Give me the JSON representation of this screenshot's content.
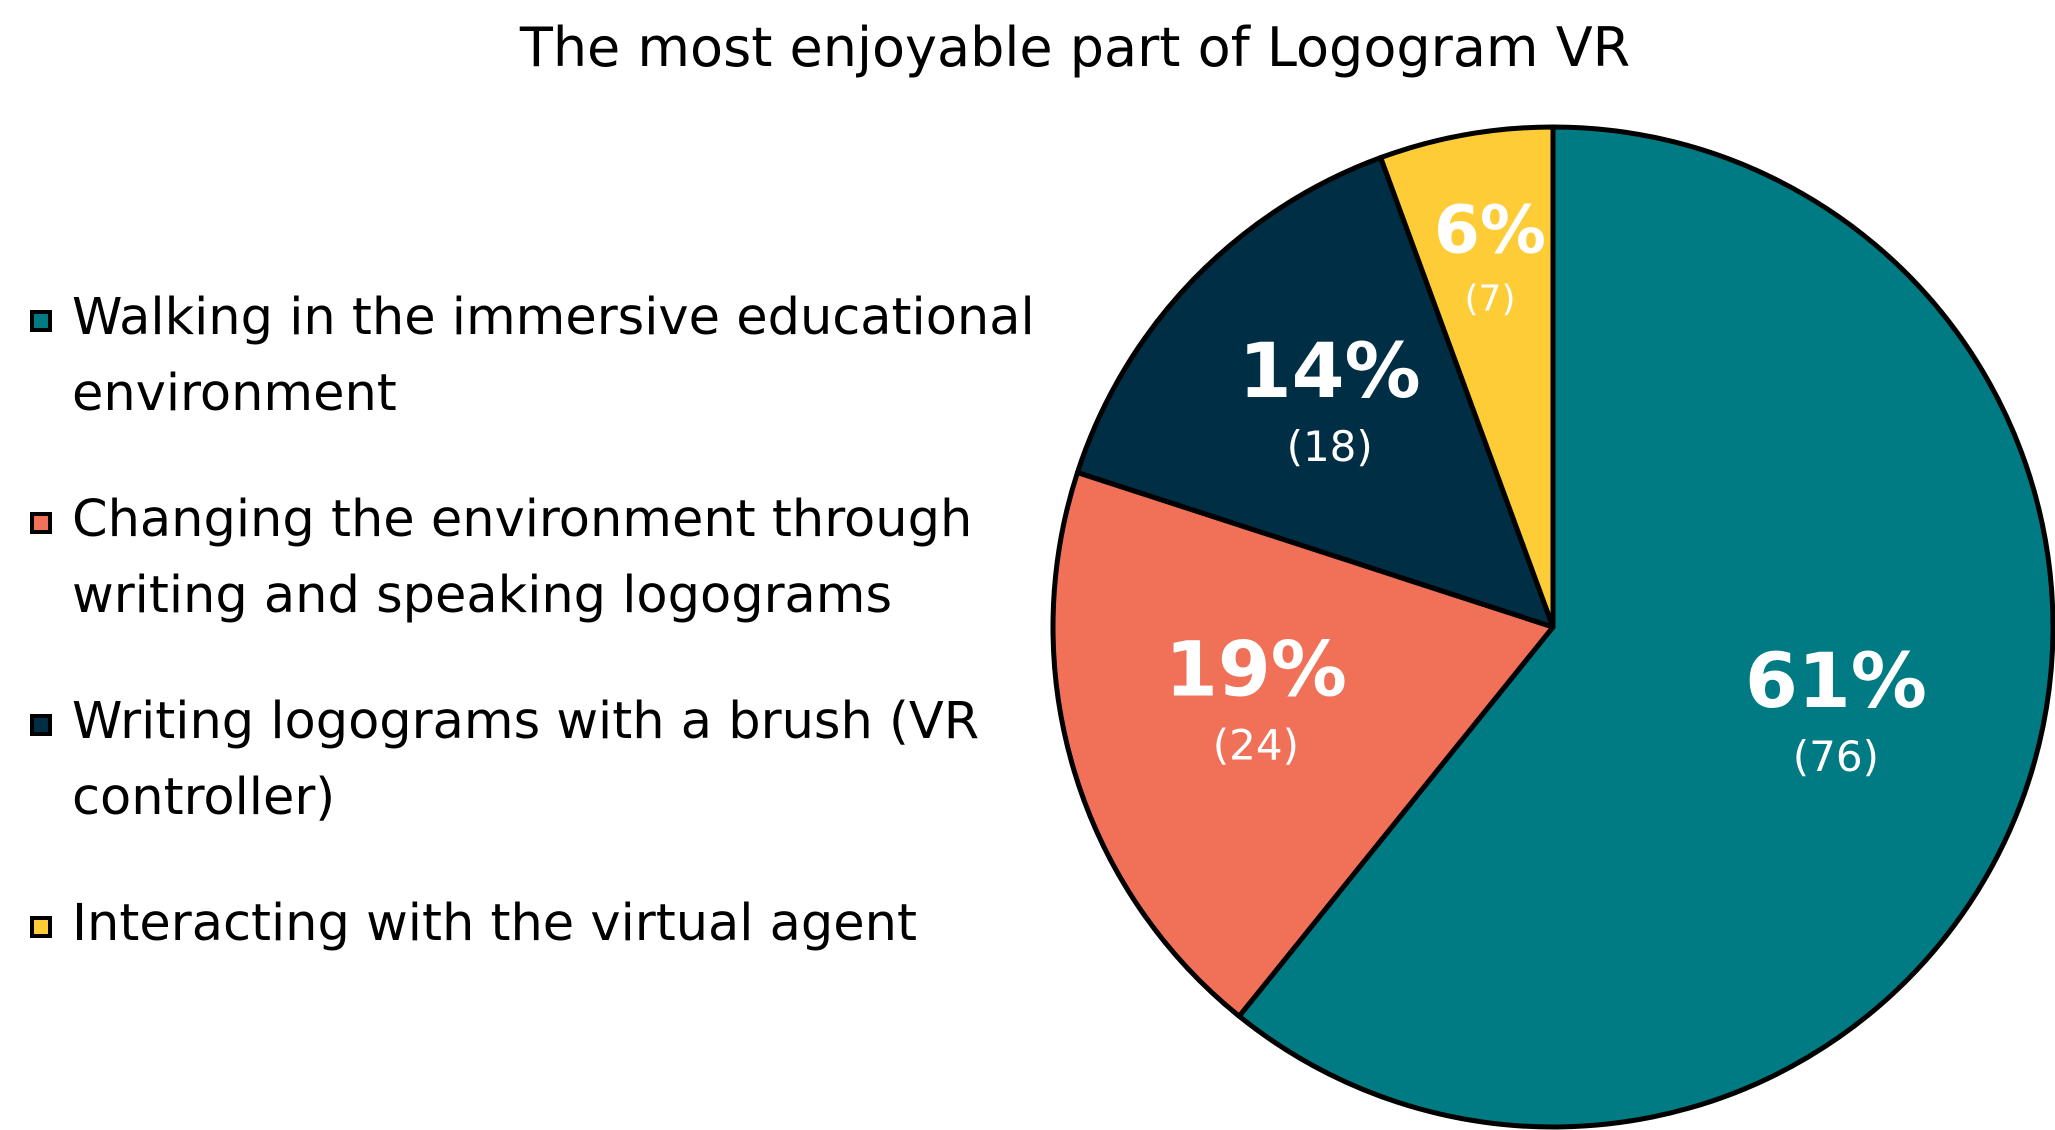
{
  "chart_data": {
    "type": "pie",
    "title": "The most enjoyable part of Logogram VR",
    "legend_position": "left",
    "slices": [
      {
        "label": "Walking in the immersive educational environment",
        "value": 76,
        "percent": "61%",
        "count_label": "(76)",
        "color": "#007A83"
      },
      {
        "label": "Changing the environment through writing and speaking logograms",
        "value": 24,
        "percent": "19%",
        "count_label": "(24)",
        "color": "#F07058"
      },
      {
        "label": "Writing logograms with a brush (VR controller)",
        "value": 18,
        "percent": "14%",
        "count_label": "(18)",
        "color": "#002E45"
      },
      {
        "label": "Interacting with the virtual agent",
        "value": 7,
        "percent": "6%",
        "count_label": "(7)",
        "color": "#FDCC36"
      }
    ]
  }
}
